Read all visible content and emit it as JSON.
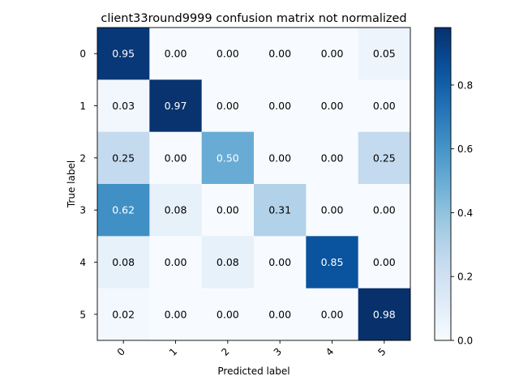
{
  "chart_data": {
    "type": "heatmap",
    "title": "client33round9999 confusion matrix not normalized",
    "xlabel": "Predicted label",
    "ylabel": "True label",
    "x_categories": [
      "0",
      "1",
      "2",
      "3",
      "4",
      "5"
    ],
    "y_categories": [
      "0",
      "1",
      "2",
      "3",
      "4",
      "5"
    ],
    "values": [
      [
        0.95,
        0.0,
        0.0,
        0.0,
        0.0,
        0.05
      ],
      [
        0.03,
        0.97,
        0.0,
        0.0,
        0.0,
        0.0
      ],
      [
        0.25,
        0.0,
        0.5,
        0.0,
        0.0,
        0.25
      ],
      [
        0.62,
        0.08,
        0.0,
        0.31,
        0.0,
        0.0
      ],
      [
        0.08,
        0.0,
        0.08,
        0.0,
        0.85,
        0.0
      ],
      [
        0.02,
        0.0,
        0.0,
        0.0,
        0.0,
        0.98
      ]
    ],
    "colormap": "Blues",
    "color_range": [
      0.0,
      0.98
    ],
    "colorbar_ticks": [
      "0.0",
      "0.2",
      "0.4",
      "0.6",
      "0.8"
    ],
    "grid": false
  }
}
